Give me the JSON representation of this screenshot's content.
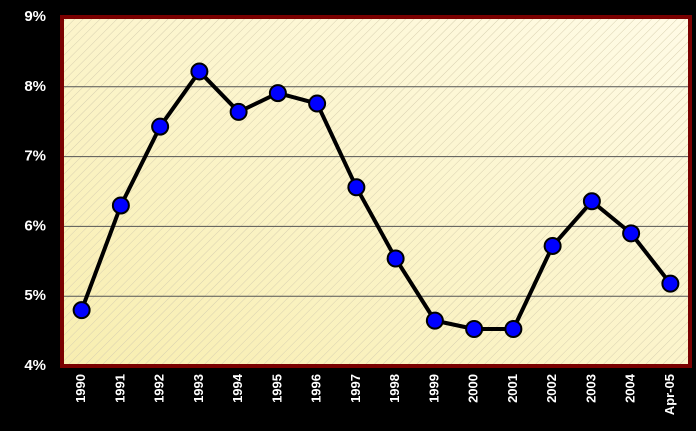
{
  "chart_data": {
    "type": "line",
    "categories": [
      "1990",
      "1991",
      "1992",
      "1993",
      "1994",
      "1995",
      "1996",
      "1997",
      "1998",
      "1999",
      "2000",
      "2001",
      "2002",
      "2003",
      "2004",
      "Apr-05"
    ],
    "values": [
      4.8,
      6.3,
      7.43,
      8.22,
      7.64,
      7.91,
      7.76,
      6.56,
      5.54,
      4.65,
      4.53,
      4.53,
      5.72,
      6.36,
      5.9,
      5.18
    ],
    "color": "#0000ff",
    "ylim": [
      4,
      9
    ],
    "yticks": [
      {
        "value": 4,
        "label": "4%"
      },
      {
        "value": 5,
        "label": "5%"
      },
      {
        "value": 6,
        "label": "6%"
      },
      {
        "value": 7,
        "label": "7%"
      },
      {
        "value": 8,
        "label": "8%"
      },
      {
        "value": 9,
        "label": "9%"
      }
    ],
    "grid": true
  }
}
